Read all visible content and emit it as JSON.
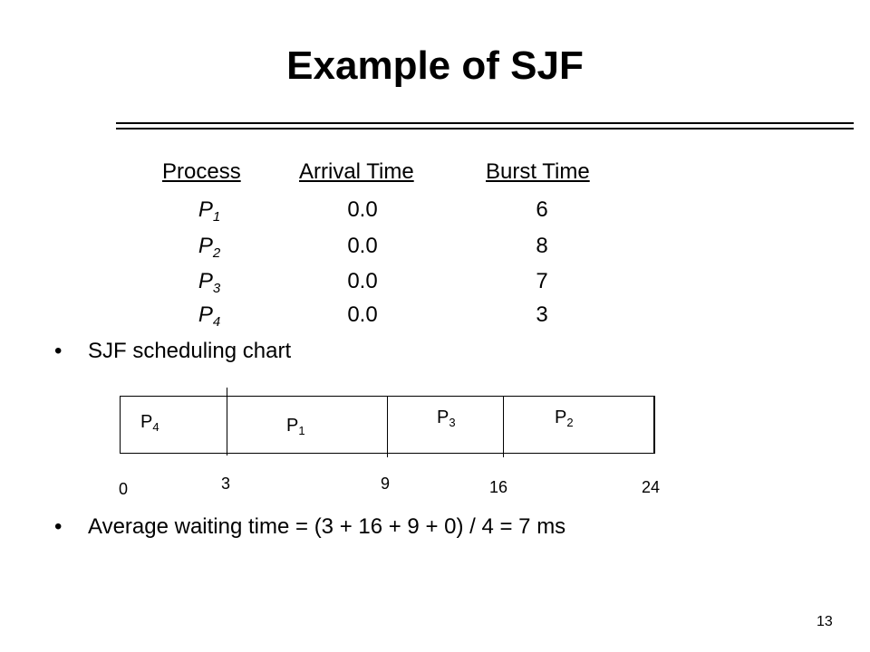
{
  "slide": {
    "title": "Example of SJF",
    "page_number": "13"
  },
  "table": {
    "headers": [
      "Process",
      "Arrival Time",
      "Burst Time"
    ],
    "rows": [
      {
        "process": "P",
        "sub": "1",
        "arrival": "0.0",
        "burst": "6"
      },
      {
        "process": "P",
        "sub": "2",
        "arrival": "0.0",
        "burst": "8"
      },
      {
        "process": "P",
        "sub": "3",
        "arrival": "0.0",
        "burst": "7"
      },
      {
        "process": "P",
        "sub": "4",
        "arrival": "0.0",
        "burst": "3"
      }
    ]
  },
  "bullets": {
    "first": "SJF scheduling chart",
    "second": "Average waiting time = (3 + 16 + 9 + 0) / 4 = 7 ms",
    "marker": "•"
  },
  "gantt": {
    "segments": [
      {
        "label": "P",
        "sub": "4"
      },
      {
        "label": "P",
        "sub": "1"
      },
      {
        "label": "P",
        "sub": "3"
      },
      {
        "label": "P",
        "sub": "2"
      }
    ],
    "ticks": [
      "0",
      "3",
      "9",
      "16",
      "24"
    ]
  }
}
